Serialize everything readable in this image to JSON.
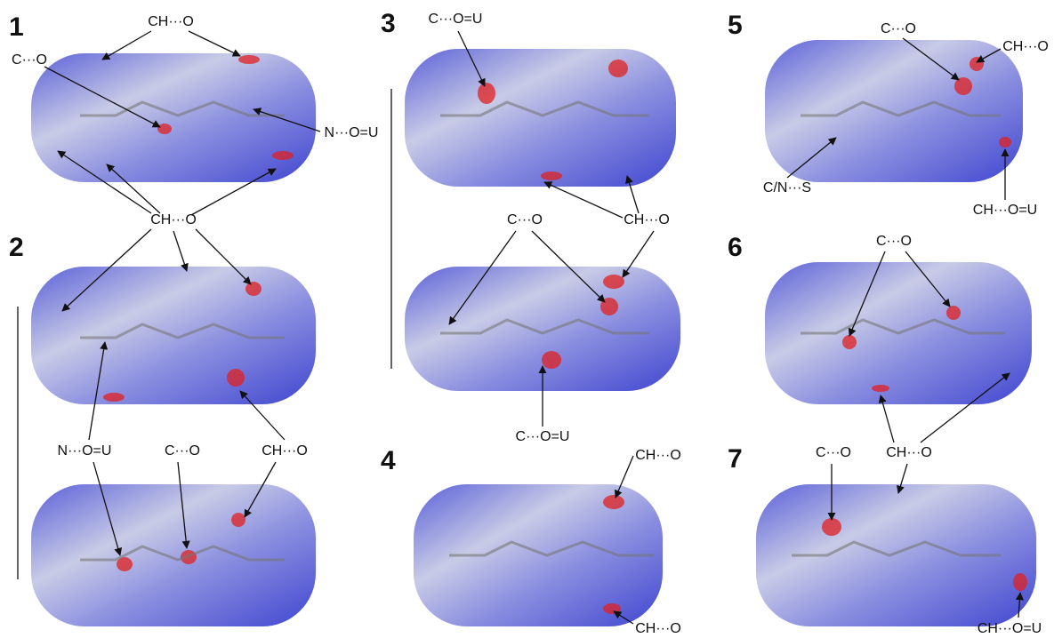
{
  "panels": [
    {
      "number": "1"
    },
    {
      "number": "2"
    },
    {
      "number": "3"
    },
    {
      "number": "4"
    },
    {
      "number": "5"
    },
    {
      "number": "6"
    },
    {
      "number": "7"
    }
  ],
  "labels": [
    "CH···O",
    "C···O",
    "N···O=U",
    "CH···O",
    "N···O=U",
    "C···O",
    "CH···O",
    "C···O=U",
    "CH···O",
    "C···O",
    "C···O=U",
    "CH···O",
    "CH···O",
    "C···O",
    "CH···O",
    "C/N···S",
    "CH···O=U",
    "C···O",
    "CH···O",
    "C···O",
    "CH···O=U"
  ]
}
